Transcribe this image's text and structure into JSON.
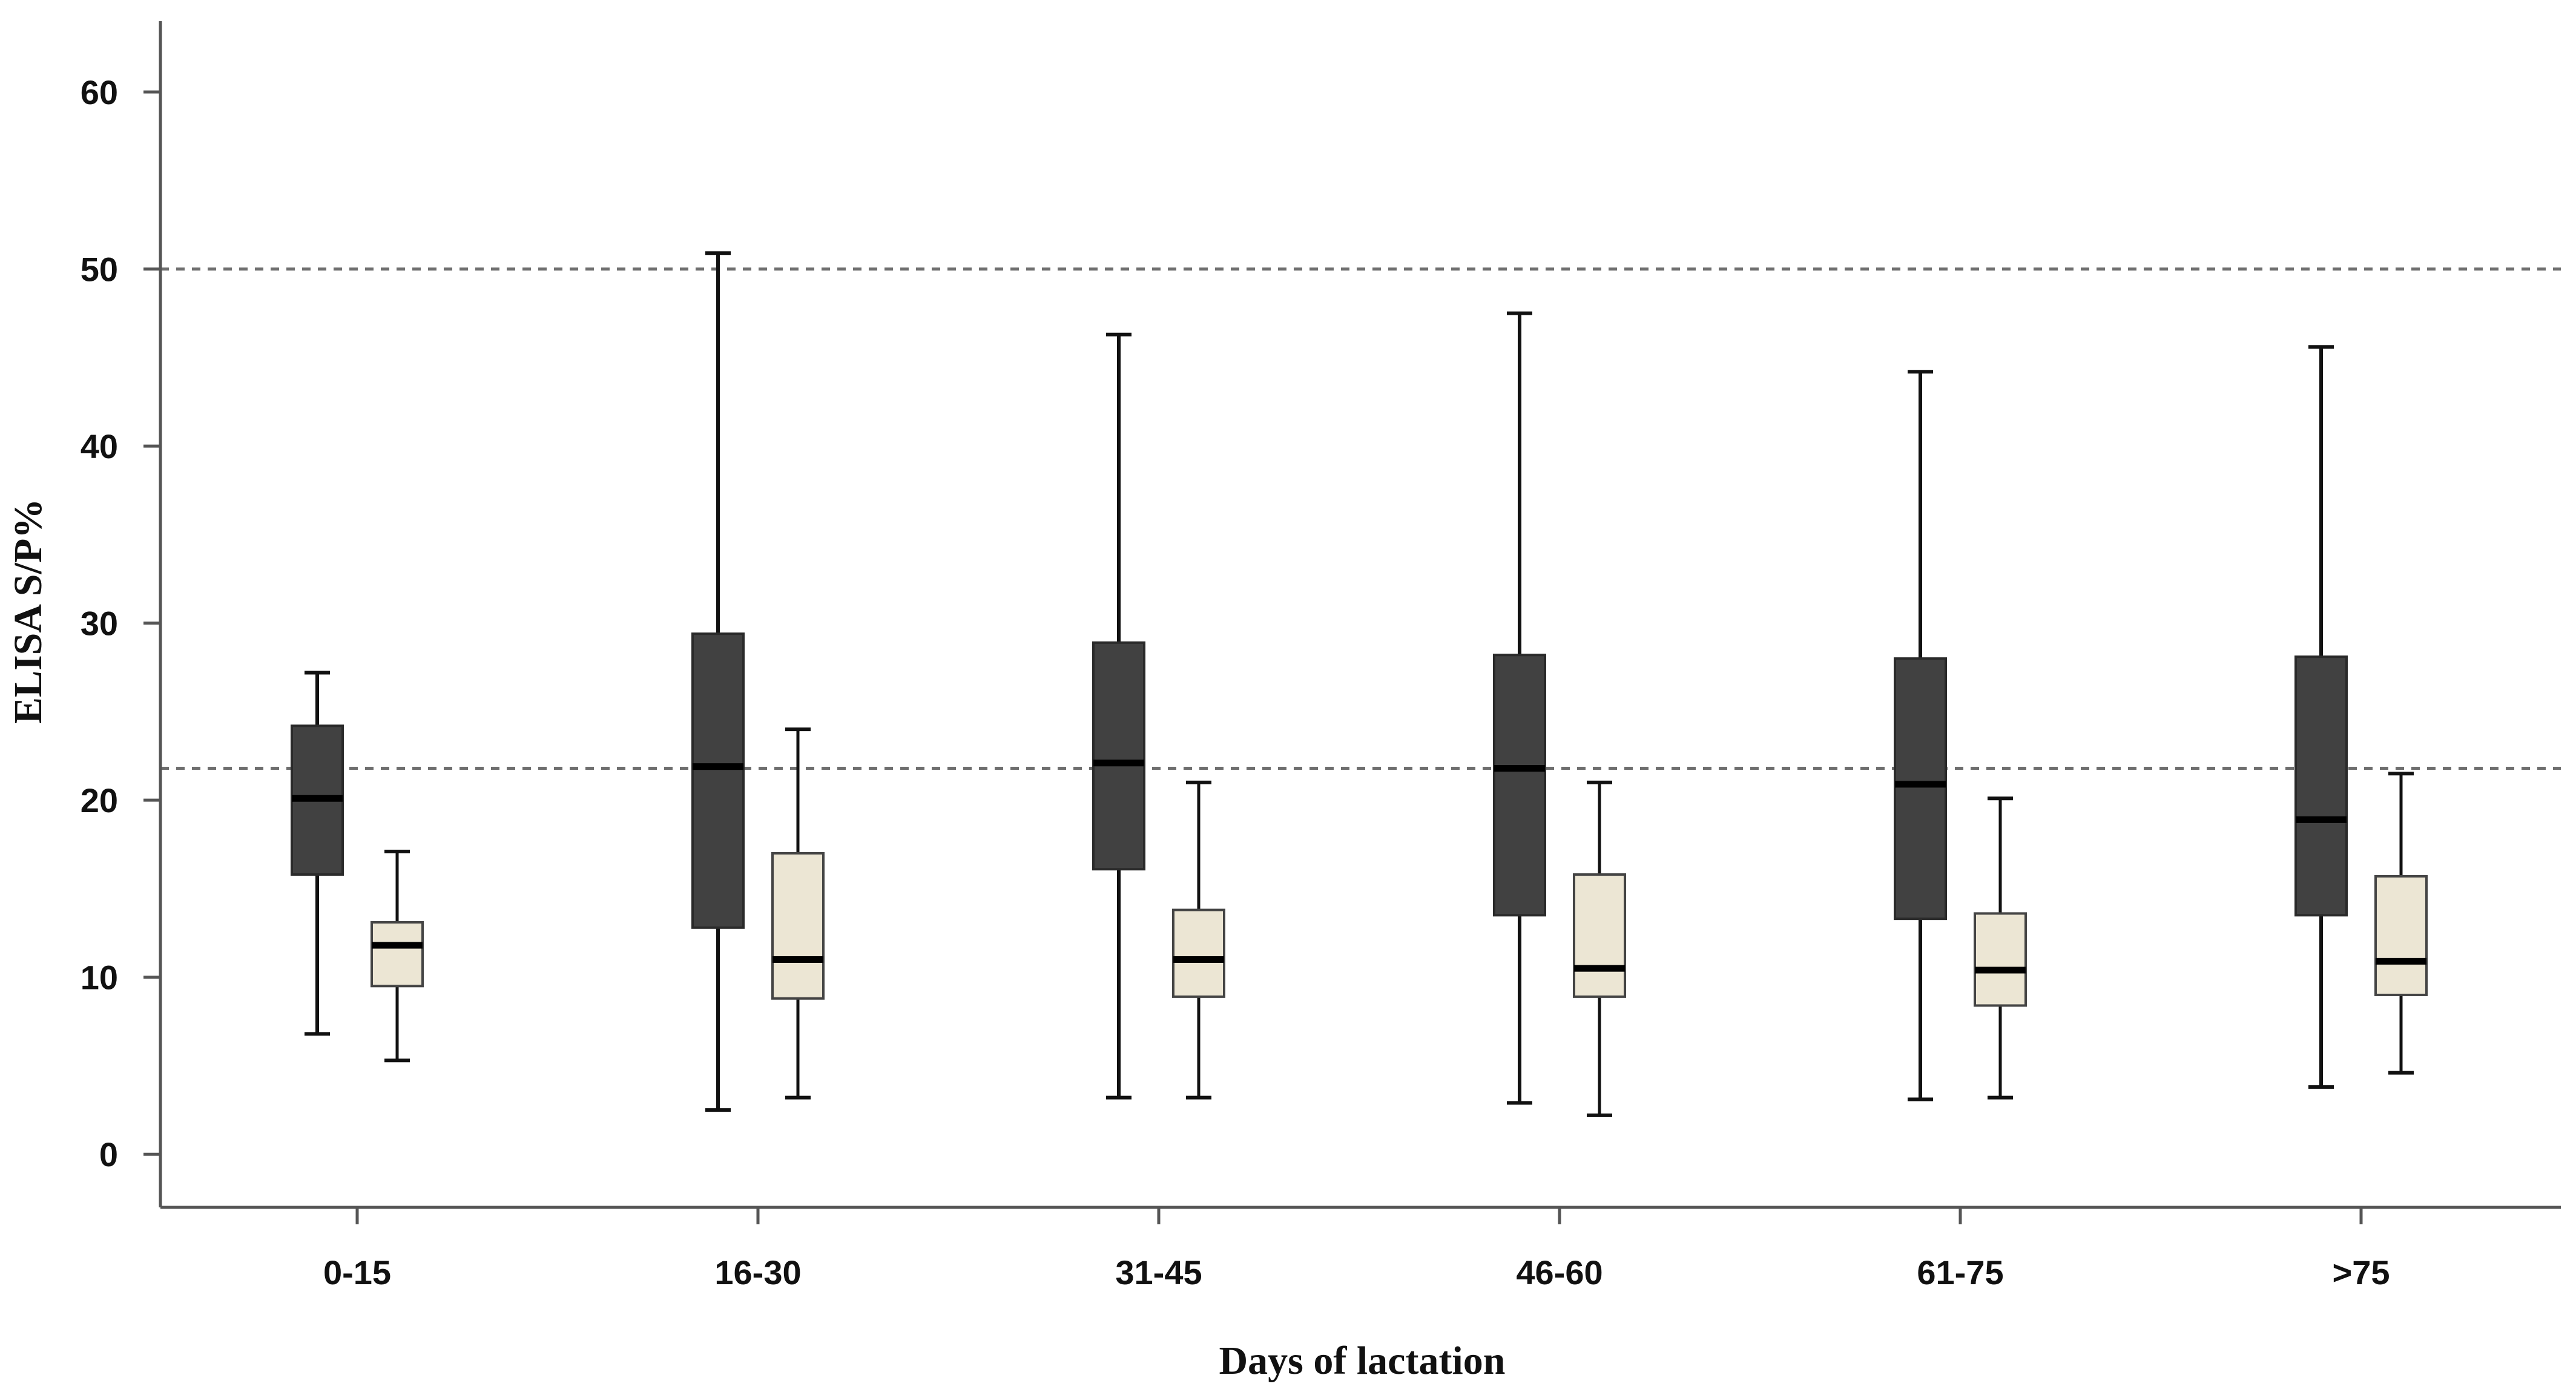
{
  "chart_data": {
    "type": "boxplot",
    "title": "",
    "xlabel": "Days of lactation",
    "ylabel": "ELISA S/P%",
    "ylim": [
      -3,
      64
    ],
    "yticks": [
      0,
      10,
      20,
      30,
      40,
      50,
      60
    ],
    "ytick_labels": [
      "0",
      "10",
      "20",
      "30",
      "40",
      "50",
      "60"
    ],
    "categories": [
      "0-15",
      "16-30",
      "31-45",
      "46-60",
      "61-75",
      ">75"
    ],
    "reference_lines": [
      50,
      21.8
    ],
    "series": [
      {
        "name": "dark",
        "color": "#414141",
        "boxes": [
          {
            "min": 6.8,
            "q1": 15.8,
            "median": 20.1,
            "q3": 24.2,
            "max": 27.2
          },
          {
            "min": 2.5,
            "q1": 12.8,
            "median": 21.9,
            "q3": 29.4,
            "max": 50.9
          },
          {
            "min": 3.2,
            "q1": 16.1,
            "median": 22.1,
            "q3": 28.9,
            "max": 46.3
          },
          {
            "min": 2.9,
            "q1": 13.5,
            "median": 21.8,
            "q3": 28.2,
            "max": 47.5
          },
          {
            "min": 3.1,
            "q1": 13.3,
            "median": 20.9,
            "q3": 28.0,
            "max": 44.2
          },
          {
            "min": 3.8,
            "q1": 13.5,
            "median": 18.9,
            "q3": 28.1,
            "max": 45.6
          }
        ]
      },
      {
        "name": "light",
        "color": "#ece6d4",
        "boxes": [
          {
            "min": 5.3,
            "q1": 9.5,
            "median": 11.8,
            "q3": 13.1,
            "max": 17.1
          },
          {
            "min": 3.2,
            "q1": 8.8,
            "median": 11.0,
            "q3": 17.0,
            "max": 24.0
          },
          {
            "min": 3.2,
            "q1": 8.9,
            "median": 11.0,
            "q3": 13.8,
            "max": 21.0
          },
          {
            "min": 2.2,
            "q1": 8.9,
            "median": 10.5,
            "q3": 15.8,
            "max": 21.0
          },
          {
            "min": 3.2,
            "q1": 8.4,
            "median": 10.4,
            "q3": 13.6,
            "max": 20.1
          },
          {
            "min": 4.6,
            "q1": 9.0,
            "median": 10.9,
            "q3": 15.7,
            "max": 21.5
          }
        ]
      }
    ]
  }
}
